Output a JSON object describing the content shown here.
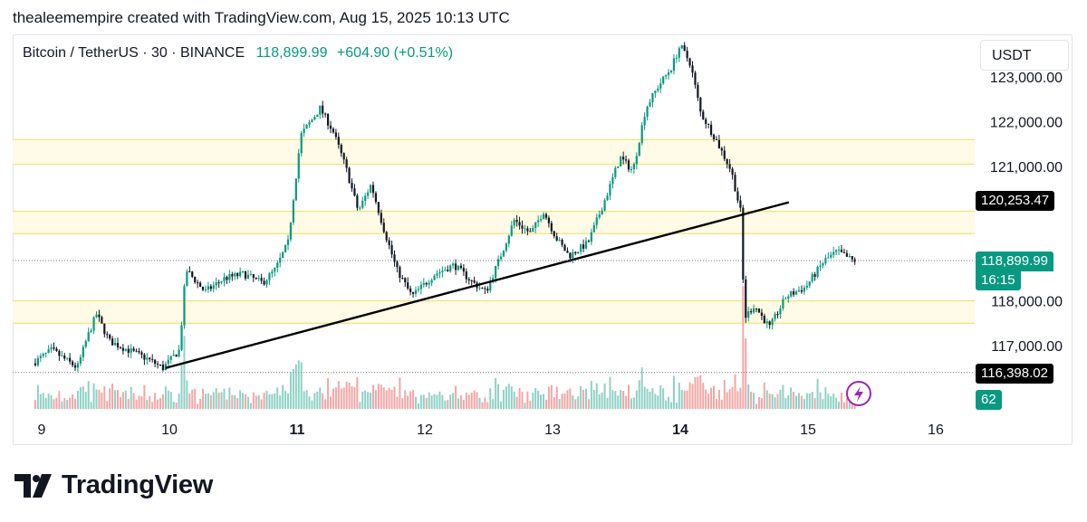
{
  "header": {
    "credit": "thealeemempire created with TradingView.com, Aug 15, 2025 10:13 UTC"
  },
  "legend": {
    "symbol": "Bitcoin / TetherUS · 30 · BINANCE",
    "last": "118,899.99",
    "change": "+604.90 (+0.51%)"
  },
  "price_axis": {
    "unit": "USDT",
    "tags": {
      "upper": "120,253.47",
      "current": "118,899.99",
      "countdown": "16:15",
      "lower": "116,398.02",
      "volume": "62"
    }
  },
  "colors": {
    "up": "#089981",
    "down": "#131722",
    "zone_fill": "#fffbe6",
    "zone_line": "#f3e27a",
    "trendline": "#000000",
    "vol_up": "#8fd1c5",
    "vol_down": "#f3a6a6"
  },
  "footer": {
    "brand": "TradingView"
  },
  "icons": {
    "flash": "lightning-icon",
    "logo": "tradingview-logo-icon"
  },
  "chart_data": {
    "type": "candlestick",
    "symbol": "Bitcoin / TetherUS",
    "interval": "30",
    "exchange": "BINANCE",
    "y_unit": "USDT",
    "ylim": [
      116000,
      124000
    ],
    "y_ticks": [
      "117,000.00",
      "118,000.00",
      "121,000.00",
      "122,000.00",
      "123,000.00"
    ],
    "y_tick_values": [
      117000,
      118000,
      121000,
      122000,
      123000
    ],
    "x_ticks": [
      "9",
      "10",
      "11",
      "12",
      "13",
      "14",
      "15",
      "16"
    ],
    "x_tick_values": [
      9,
      10,
      11,
      12,
      13,
      14,
      15,
      16
    ],
    "zones": [
      {
        "from": 121050,
        "to": 121600
      },
      {
        "from": 119500,
        "to": 120000
      },
      {
        "from": 117500,
        "to": 118000
      }
    ],
    "trendline": {
      "x1": 9.97,
      "y1": 116500,
      "x2": 14.85,
      "y2": 120200
    },
    "price_line": 118899.99,
    "lower_line": 116398.02,
    "path": [
      [
        8.95,
        116600
      ],
      [
        9.1,
        116900
      ],
      [
        9.2,
        116700
      ],
      [
        9.3,
        116500
      ],
      [
        9.38,
        117200
      ],
      [
        9.45,
        117700
      ],
      [
        9.55,
        117100
      ],
      [
        9.7,
        116900
      ],
      [
        9.85,
        116700
      ],
      [
        9.97,
        116500
      ],
      [
        10.1,
        116900
      ],
      [
        10.15,
        118700
      ],
      [
        10.3,
        118200
      ],
      [
        10.45,
        118500
      ],
      [
        10.6,
        118600
      ],
      [
        10.75,
        118400
      ],
      [
        10.85,
        118700
      ],
      [
        10.95,
        119300
      ],
      [
        11.05,
        121700
      ],
      [
        11.2,
        122300
      ],
      [
        11.3,
        121800
      ],
      [
        11.4,
        121000
      ],
      [
        11.5,
        120000
      ],
      [
        11.6,
        120600
      ],
      [
        11.7,
        119600
      ],
      [
        11.8,
        118700
      ],
      [
        11.92,
        118100
      ],
      [
        12.1,
        118600
      ],
      [
        12.25,
        118800
      ],
      [
        12.4,
        118400
      ],
      [
        12.5,
        118200
      ],
      [
        12.6,
        118900
      ],
      [
        12.72,
        119800
      ],
      [
        12.85,
        119500
      ],
      [
        12.95,
        120000
      ],
      [
        13.05,
        119400
      ],
      [
        13.15,
        119000
      ],
      [
        13.3,
        119300
      ],
      [
        13.45,
        120400
      ],
      [
        13.55,
        121200
      ],
      [
        13.65,
        120900
      ],
      [
        13.75,
        122300
      ],
      [
        13.85,
        122800
      ],
      [
        13.95,
        123200
      ],
      [
        14.02,
        123700
      ],
      [
        14.1,
        123300
      ],
      [
        14.18,
        122200
      ],
      [
        14.3,
        121600
      ],
      [
        14.42,
        120900
      ],
      [
        14.5,
        119900
      ],
      [
        14.52,
        117600
      ],
      [
        14.6,
        117900
      ],
      [
        14.72,
        117400
      ],
      [
        14.85,
        118100
      ],
      [
        15.0,
        118300
      ],
      [
        15.15,
        118900
      ],
      [
        15.25,
        119100
      ],
      [
        15.37,
        118899.99
      ]
    ]
  }
}
